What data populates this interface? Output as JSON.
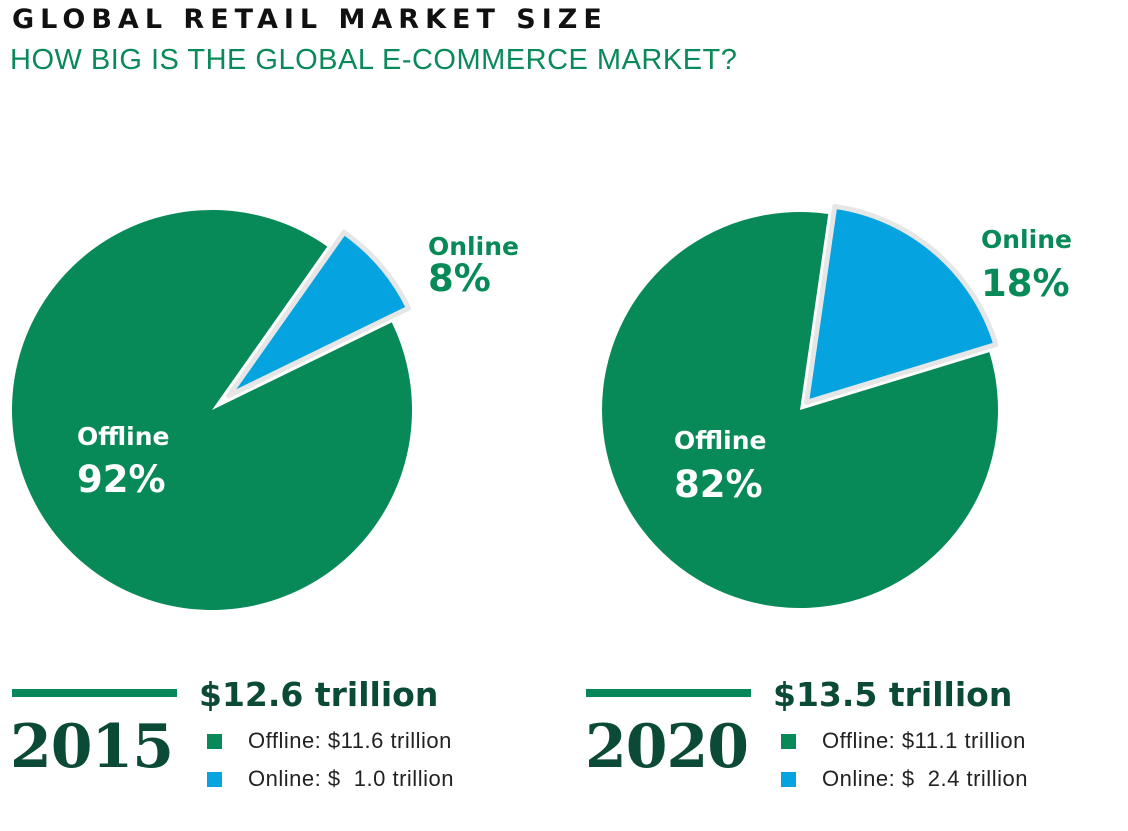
{
  "header": {
    "title": "GLOBAL RETAIL MARKET SIZE",
    "subtitle": "HOW BIG IS THE GLOBAL E-COMMERCE MARKET?"
  },
  "colors": {
    "offline": "#078a58",
    "online": "#05a3e0",
    "dark_text": "#0b4a37"
  },
  "chart_data": [
    {
      "type": "pie",
      "year": "2015",
      "total_label": "$12.6 trillion",
      "slices": [
        {
          "name": "Online",
          "label": "Online",
          "pct_label": "8%",
          "value": 8,
          "color": "#05a3e0"
        },
        {
          "name": "Offline",
          "label": "Offline",
          "pct_label": "92%",
          "value": 92,
          "color": "#078a58"
        }
      ],
      "legend": [
        {
          "text": "Offline: $11.6 trillion",
          "color": "#078a58"
        },
        {
          "text": "Online: $  1.0 trillion",
          "color": "#05a3e0"
        }
      ]
    },
    {
      "type": "pie",
      "year": "2020",
      "total_label": "$13.5 trillion",
      "slices": [
        {
          "name": "Online",
          "label": "Online",
          "pct_label": "18%",
          "value": 18,
          "color": "#05a3e0"
        },
        {
          "name": "Offline",
          "label": "Offline",
          "pct_label": "82%",
          "value": 82,
          "color": "#078a58"
        }
      ],
      "legend": [
        {
          "text": "Offline: $11.1 trillion",
          "color": "#078a58"
        },
        {
          "text": "Online: $  2.4 trillion",
          "color": "#05a3e0"
        }
      ]
    }
  ]
}
